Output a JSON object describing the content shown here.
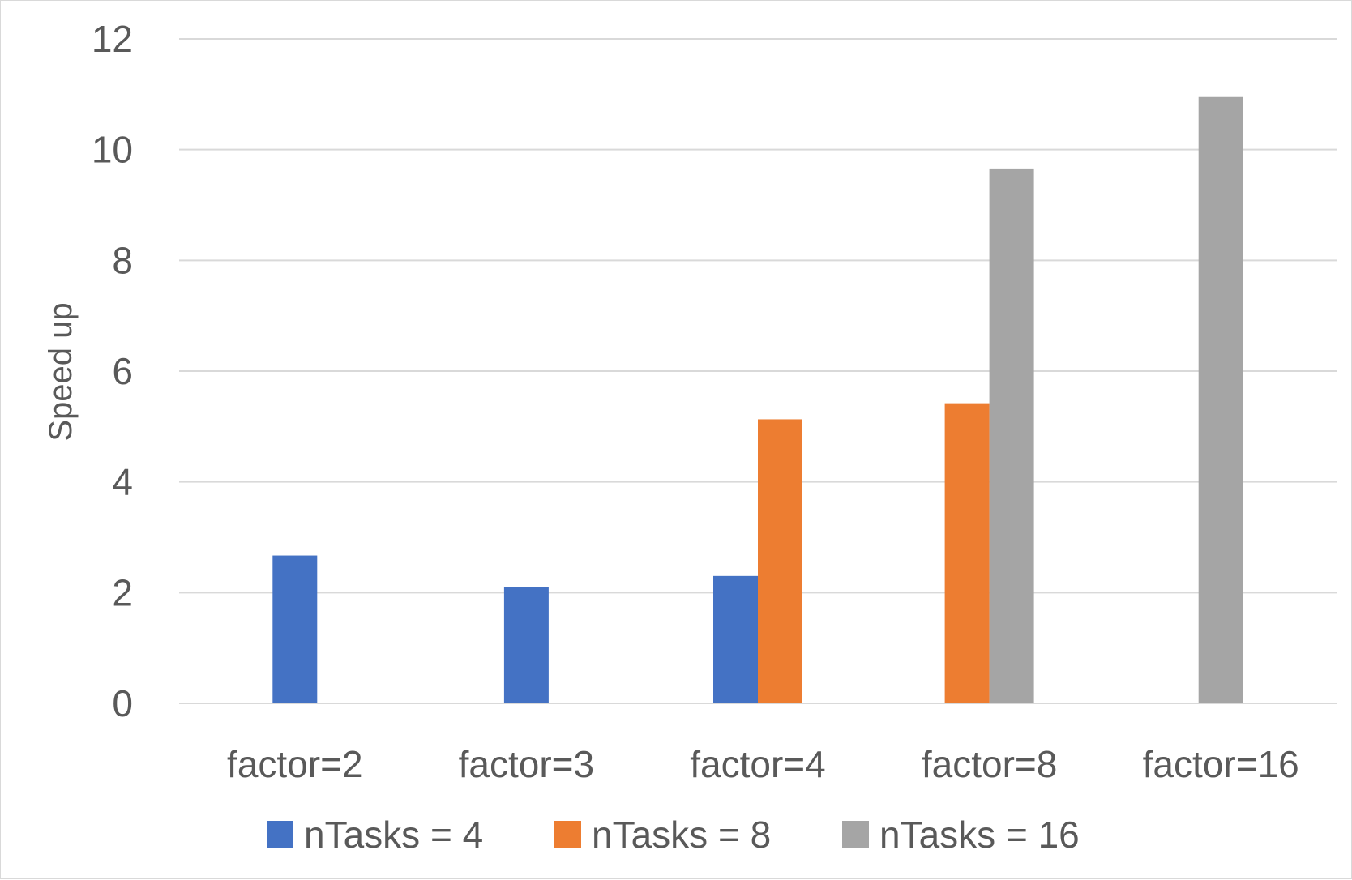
{
  "chart_data": {
    "type": "bar",
    "title": "",
    "xlabel": "",
    "ylabel": "Speed up",
    "ylim": [
      0,
      12
    ],
    "yticks": [
      0,
      2,
      4,
      6,
      8,
      10,
      12
    ],
    "grid": true,
    "legend_position": "bottom",
    "categories": [
      "factor=2",
      "factor=3",
      "factor=4",
      "factor=8",
      "factor=16"
    ],
    "series": [
      {
        "name": "nTasks = 4",
        "color": "#4472C4",
        "values": [
          2.67,
          2.1,
          2.3,
          null,
          null
        ]
      },
      {
        "name": "nTasks = 8",
        "color": "#ED7D31",
        "values": [
          null,
          null,
          5.13,
          5.42,
          null
        ]
      },
      {
        "name": "nTasks = 16",
        "color": "#A5A5A5",
        "values": [
          null,
          null,
          null,
          9.66,
          10.95
        ]
      }
    ]
  }
}
